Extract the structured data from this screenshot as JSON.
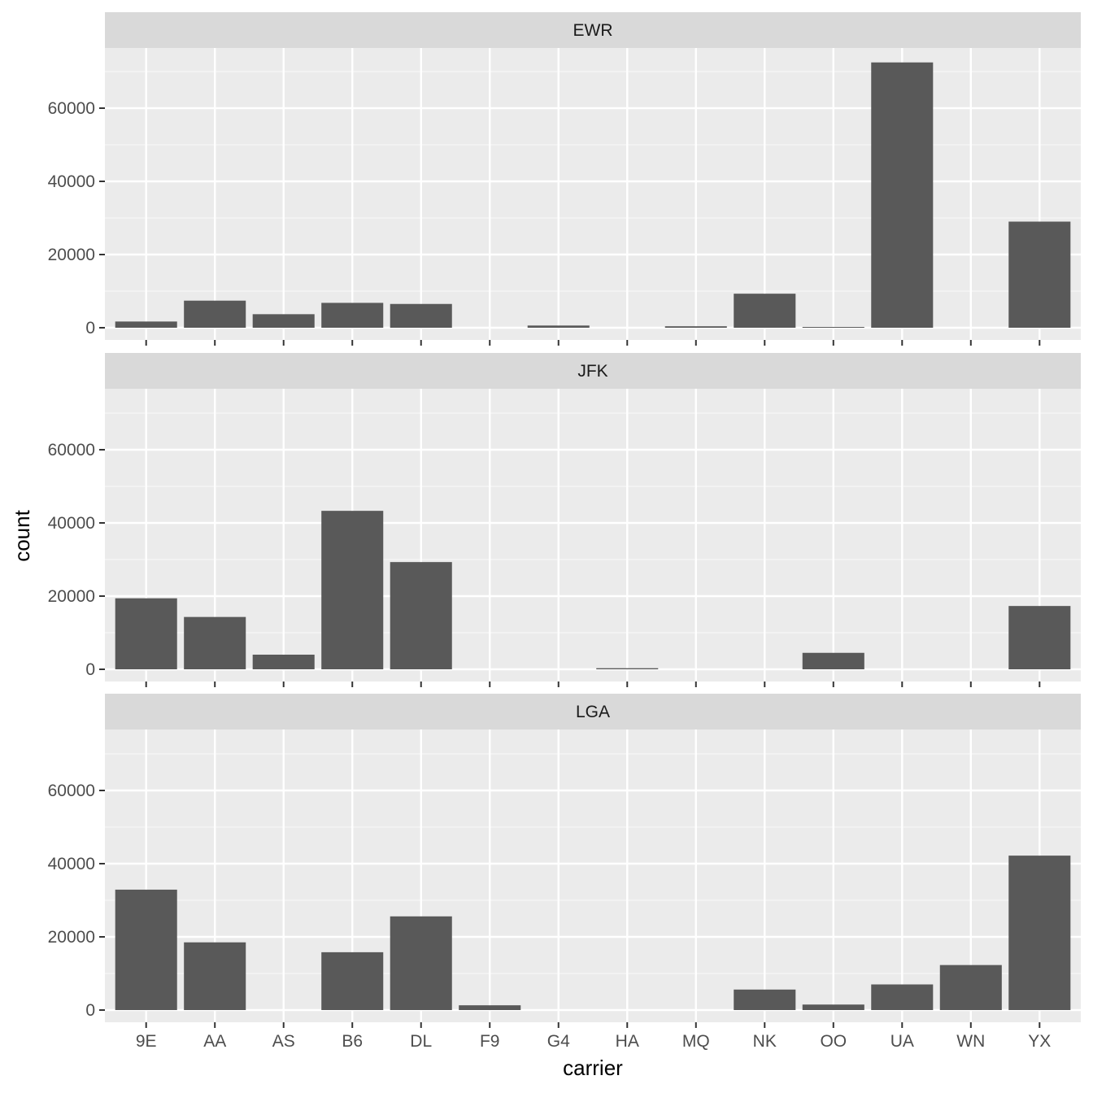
{
  "chart_data": {
    "type": "bar",
    "xlabel": "carrier",
    "ylabel": "count",
    "ylim": [
      0,
      78000
    ],
    "yticks": [
      0,
      20000,
      40000,
      60000
    ],
    "grid": true,
    "legend": "none",
    "colors": {
      "panel_background": "#ebebeb",
      "grid_major": "#ffffff",
      "grid_minor": "#f5f5f5",
      "strip_background": "#d9d9d9",
      "bar": "#595959",
      "tick_mark": "#333333",
      "tick_label": "#4d4d4d"
    },
    "categories": [
      "9E",
      "AA",
      "AS",
      "B6",
      "DL",
      "F9",
      "G4",
      "HA",
      "MQ",
      "NK",
      "OO",
      "UA",
      "WN",
      "YX"
    ],
    "facets": [
      {
        "label": "EWR",
        "values": [
          1700,
          7400,
          3700,
          6800,
          6500,
          0,
          600,
          0,
          400,
          9300,
          200,
          72500,
          0,
          29000
        ]
      },
      {
        "label": "JFK",
        "values": [
          19400,
          14300,
          4000,
          43300,
          29300,
          0,
          0,
          300,
          0,
          0,
          4500,
          0,
          0,
          17300
        ]
      },
      {
        "label": "LGA",
        "values": [
          32900,
          18500,
          0,
          15800,
          25600,
          1300,
          0,
          0,
          0,
          5600,
          1500,
          7000,
          12300,
          42200
        ]
      }
    ]
  }
}
